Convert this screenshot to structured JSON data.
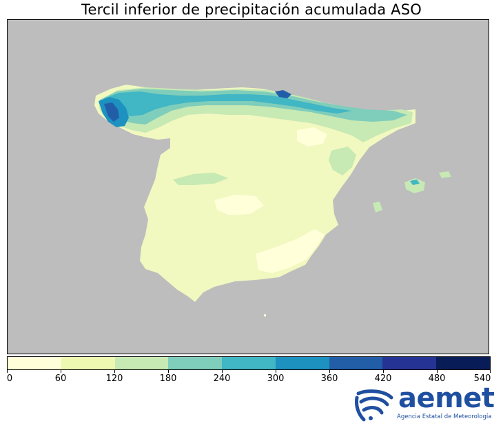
{
  "title": "Tercil inferior de precipitación acumulada ASO",
  "colorbar": {
    "ticks": [
      "0",
      "60",
      "120",
      "180",
      "240",
      "300",
      "360",
      "420",
      "480",
      "540"
    ],
    "colors": [
      "#ffffd9",
      "#edf8b1",
      "#c7e9b4",
      "#7fcdbb",
      "#41b6c4",
      "#1d91c0",
      "#225ea8",
      "#253494",
      "#081d58"
    ]
  },
  "colors": {
    "background": "#bdbdbd",
    "land_dry": "#f3f9c6"
  },
  "logo": {
    "wordmark": "aemet",
    "subtitle": "Agencia Estatal de Meteorología",
    "icon": "aemet-swirl-icon"
  }
}
